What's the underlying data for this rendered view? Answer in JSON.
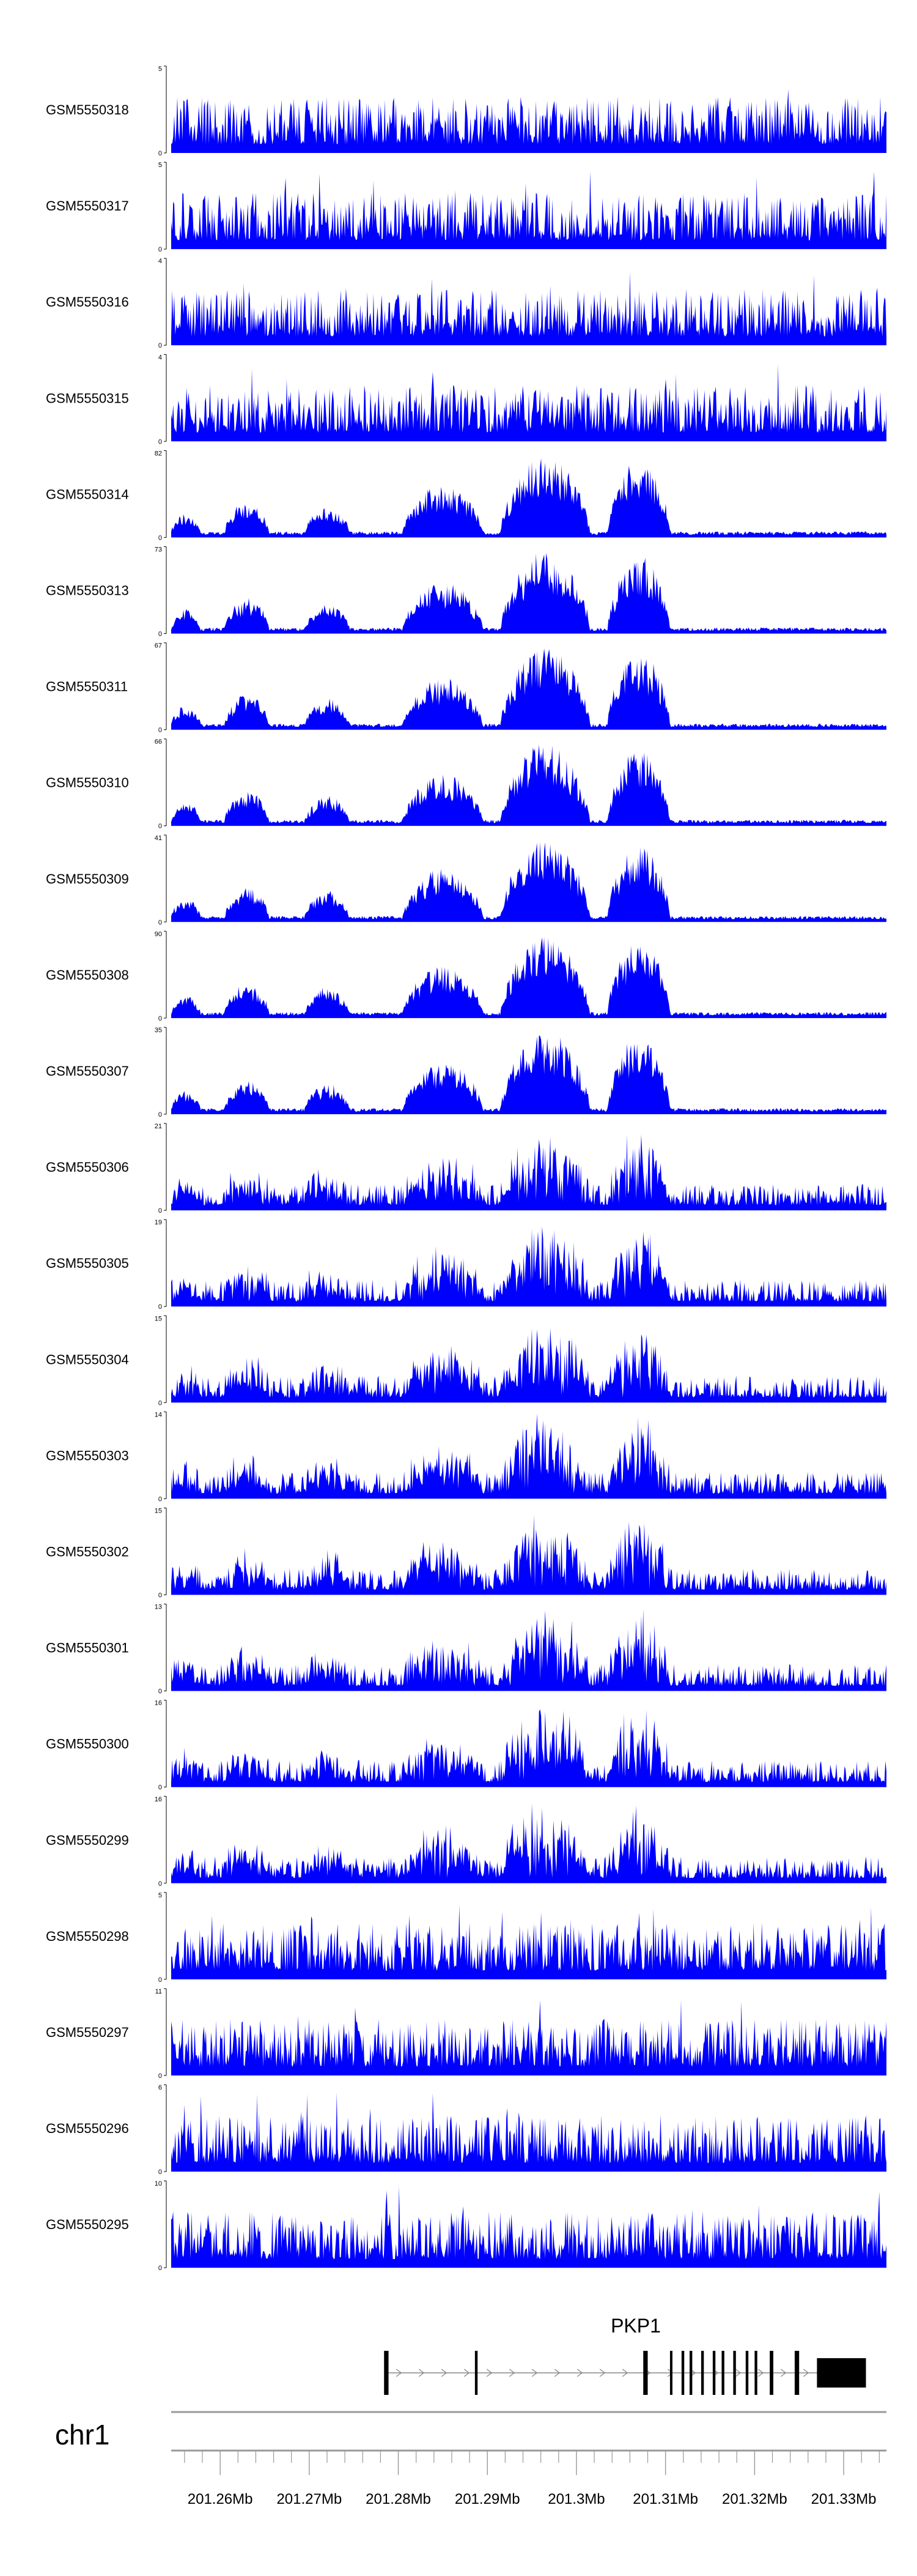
{
  "chart_data": {
    "type": "area",
    "chromosome": "chr1",
    "x_range": [
      201.2545,
      201.3348
    ],
    "x_unit": "Mb",
    "x_ticks": [
      201.26,
      201.27,
      201.28,
      201.29,
      201.3,
      201.31,
      201.32,
      201.33
    ],
    "x_tick_labels": [
      "201.26Mb",
      "201.27Mb",
      "201.28Mb",
      "201.29Mb",
      "201.3Mb",
      "201.31Mb",
      "201.32Mb",
      "201.33Mb"
    ],
    "series_color": "#0000ff",
    "grid": false,
    "tracks": [
      {
        "name": "GSM5550318",
        "ymax": 5,
        "profile": "flat"
      },
      {
        "name": "GSM5550317",
        "ymax": 5,
        "profile": "flat"
      },
      {
        "name": "GSM5550316",
        "ymax": 4,
        "profile": "flat"
      },
      {
        "name": "GSM5550315",
        "ymax": 4,
        "profile": "flat"
      },
      {
        "name": "GSM5550314",
        "ymax": 82,
        "profile": "peaks"
      },
      {
        "name": "GSM5550313",
        "ymax": 73,
        "profile": "peaks"
      },
      {
        "name": "GSM5550311",
        "ymax": 67,
        "profile": "peaks"
      },
      {
        "name": "GSM5550310",
        "ymax": 66,
        "profile": "peaks"
      },
      {
        "name": "GSM5550309",
        "ymax": 41,
        "profile": "peaks"
      },
      {
        "name": "GSM5550308",
        "ymax": 90,
        "profile": "peaks"
      },
      {
        "name": "GSM5550307",
        "ymax": 35,
        "profile": "peaks"
      },
      {
        "name": "GSM5550306",
        "ymax": 21,
        "profile": "mid"
      },
      {
        "name": "GSM5550305",
        "ymax": 19,
        "profile": "mid"
      },
      {
        "name": "GSM5550304",
        "ymax": 15,
        "profile": "mid"
      },
      {
        "name": "GSM5550303",
        "ymax": 14,
        "profile": "mid"
      },
      {
        "name": "GSM5550302",
        "ymax": 15,
        "profile": "mid"
      },
      {
        "name": "GSM5550301",
        "ymax": 13,
        "profile": "mid"
      },
      {
        "name": "GSM5550300",
        "ymax": 16,
        "profile": "mid"
      },
      {
        "name": "GSM5550299",
        "ymax": 16,
        "profile": "mid"
      },
      {
        "name": "GSM5550298",
        "ymax": 5,
        "profile": "flat"
      },
      {
        "name": "GSM5550297",
        "ymax": 11,
        "profile": "flat"
      },
      {
        "name": "GSM5550296",
        "ymax": 6,
        "profile": "flat"
      },
      {
        "name": "GSM5550295",
        "ymax": 10,
        "profile": "flat"
      }
    ],
    "peak_regions": [
      {
        "start": 201.2545,
        "end": 201.2578,
        "level": 0.22
      },
      {
        "start": 201.2605,
        "end": 201.2655,
        "level": 0.35
      },
      {
        "start": 201.2695,
        "end": 201.2745,
        "level": 0.3
      },
      {
        "start": 201.2805,
        "end": 201.2895,
        "level": 0.55
      },
      {
        "start": 201.2915,
        "end": 201.3015,
        "level": 0.9
      },
      {
        "start": 201.3035,
        "end": 201.3105,
        "level": 0.85
      }
    ],
    "gene": {
      "name": "PKP1",
      "strand": "+",
      "start": 201.2784,
      "end": 201.3325,
      "exons": [
        {
          "start": 201.2784,
          "end": 201.2789
        },
        {
          "start": 201.2886,
          "end": 201.2889
        },
        {
          "start": 201.3075,
          "end": 201.308
        },
        {
          "start": 201.3105,
          "end": 201.3107
        },
        {
          "start": 201.3118,
          "end": 201.3121
        },
        {
          "start": 201.3127,
          "end": 201.313
        },
        {
          "start": 201.314,
          "end": 201.3143
        },
        {
          "start": 201.3153,
          "end": 201.3156
        },
        {
          "start": 201.3163,
          "end": 201.3166
        },
        {
          "start": 201.3176,
          "end": 201.3179
        },
        {
          "start": 201.319,
          "end": 201.3193
        },
        {
          "start": 201.32,
          "end": 201.3203
        },
        {
          "start": 201.3217,
          "end": 201.3221
        },
        {
          "start": 201.3245,
          "end": 201.325
        },
        {
          "start": 201.327,
          "end": 201.3325
        }
      ]
    }
  }
}
